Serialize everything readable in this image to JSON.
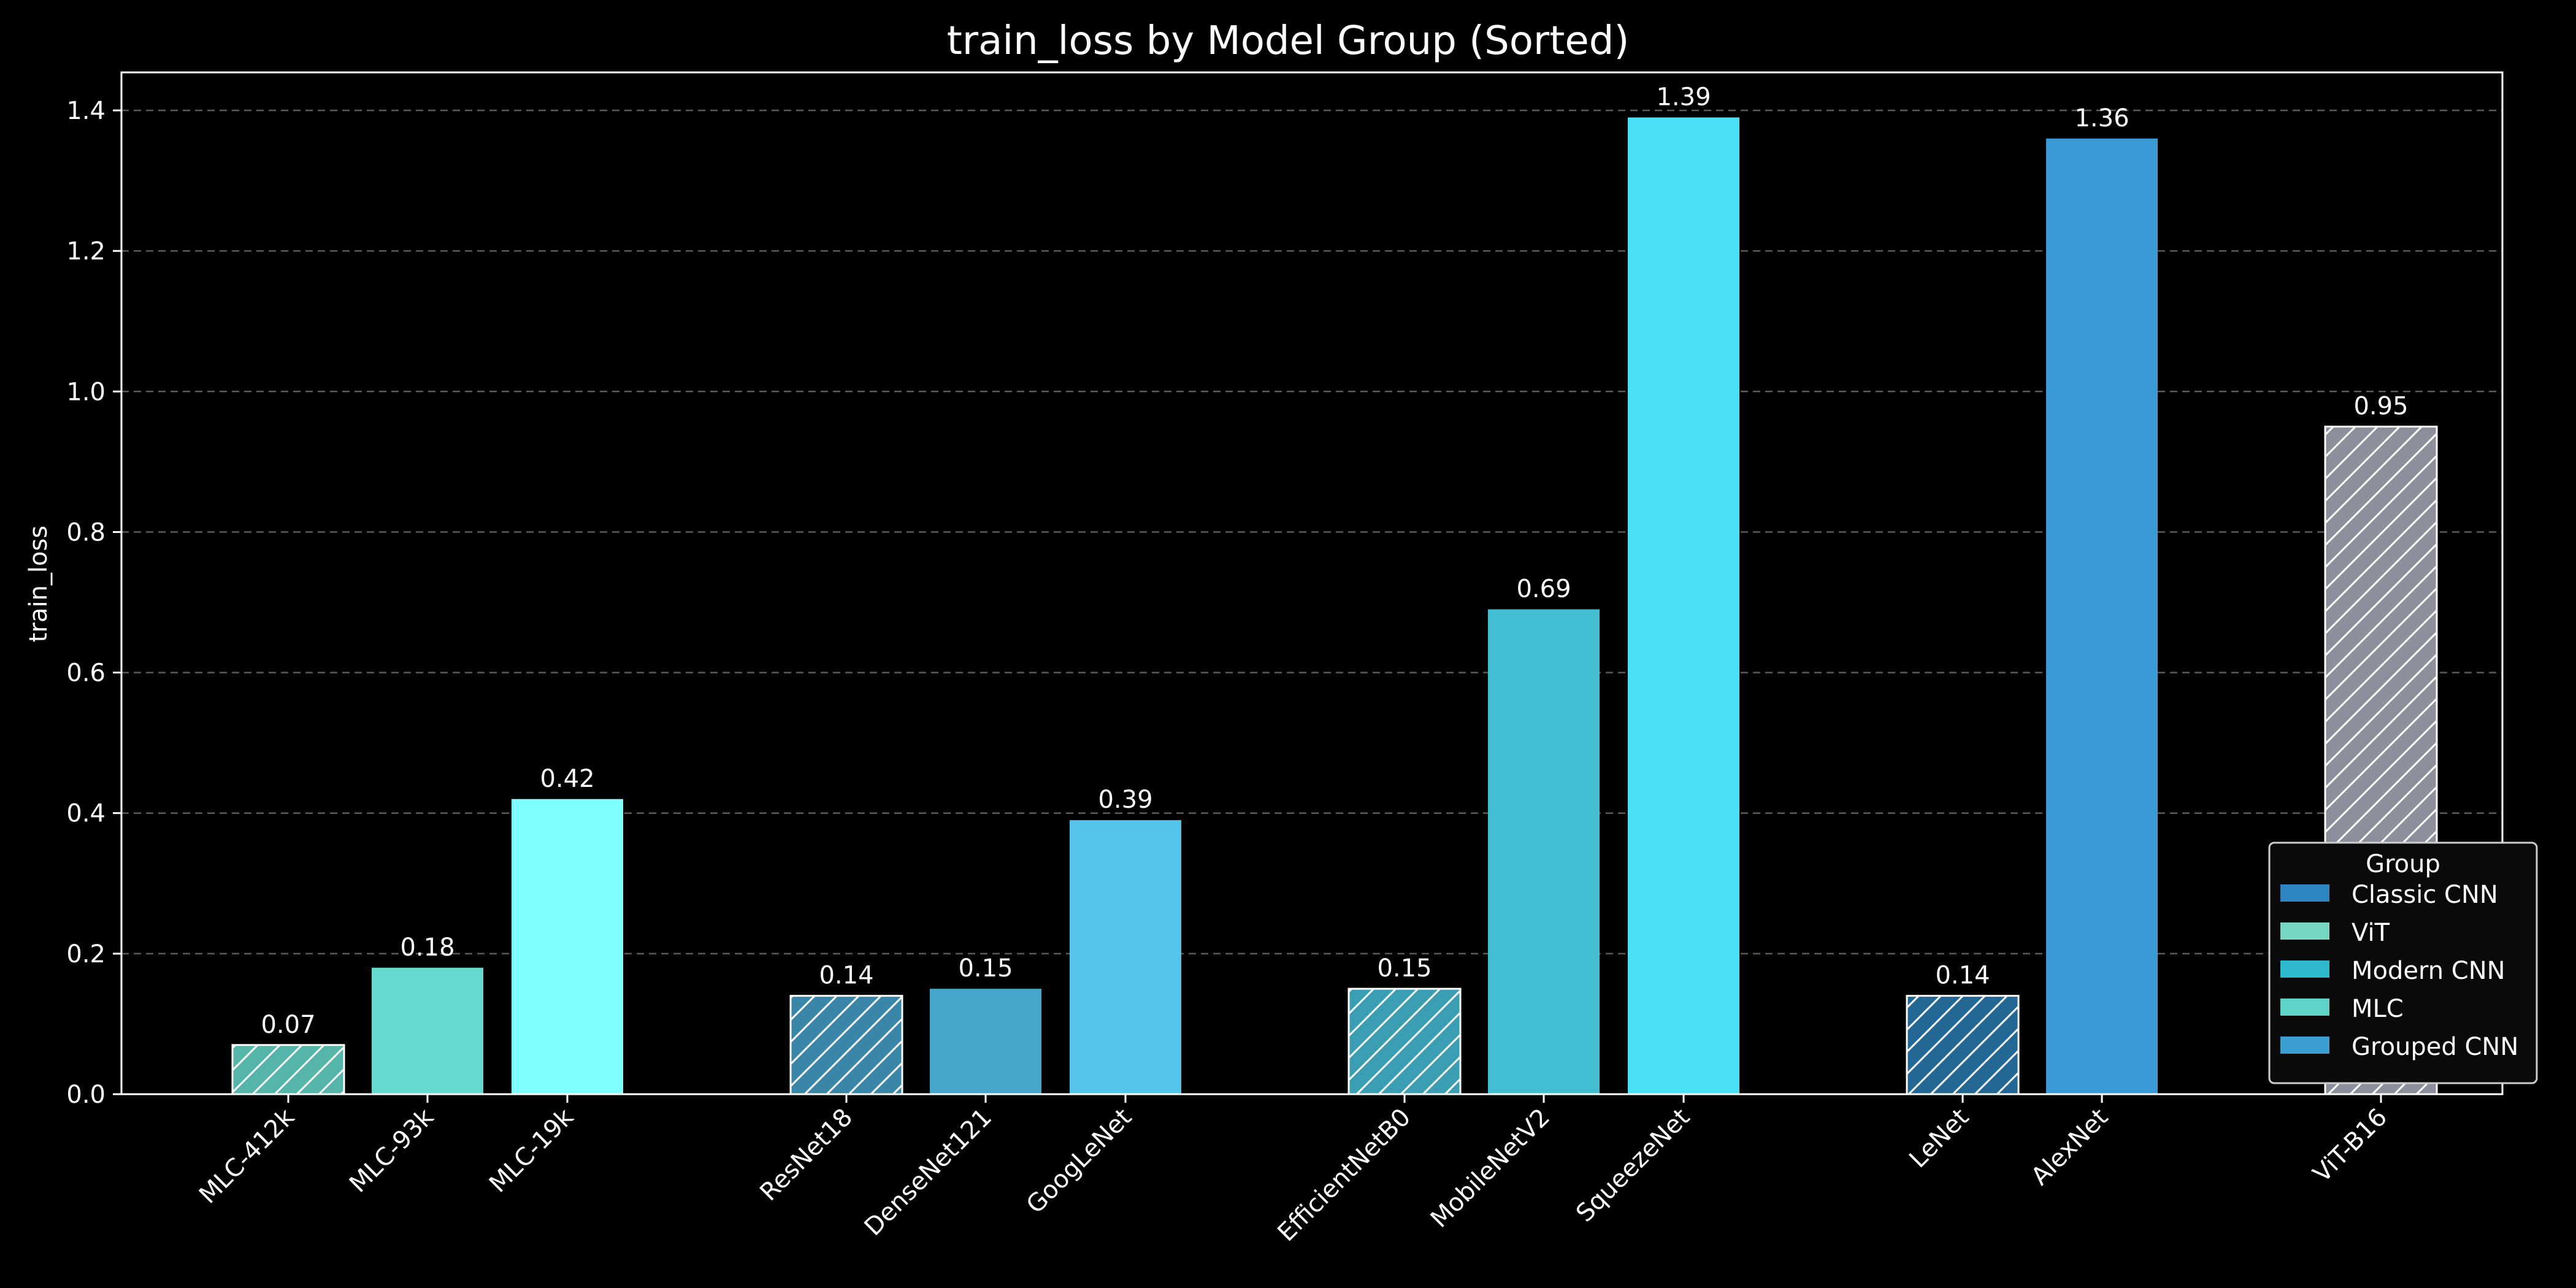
{
  "chart_data": {
    "type": "bar",
    "title": "train_loss by Model Group (Sorted)",
    "xlabel": "",
    "ylabel": "train_loss",
    "ylim": [
      0,
      1.45
    ],
    "yticks": [
      "0.0",
      "0.2",
      "0.4",
      "0.6",
      "0.8",
      "1.0",
      "1.2",
      "1.4"
    ],
    "grid": "horizontal dashed",
    "legend_title": "Group",
    "legend_placement": "lower-right",
    "legend": [
      {
        "label": "Classic CNN",
        "color": "#2e86c1"
      },
      {
        "label": "ViT",
        "color": "#76d7c4"
      },
      {
        "label": "Modern CNN",
        "color": "#2eb8cc"
      },
      {
        "label": "MLC",
        "color": "#5fd3c8"
      },
      {
        "label": "Grouped CNN",
        "color": "#3a9fd0"
      }
    ],
    "bars": [
      {
        "category": "MLC-412k",
        "value": 0.07,
        "label": "0.07",
        "color": "#55b5a9",
        "hatch": true
      },
      {
        "category": "MLC-93k",
        "value": 0.18,
        "label": "0.18",
        "color": "#66d9cf",
        "hatch": false
      },
      {
        "category": "MLC-19k",
        "value": 0.42,
        "label": "0.42",
        "color": "#7fffff",
        "hatch": false
      },
      {
        "category": "ResNet18",
        "value": 0.14,
        "label": "0.14",
        "color": "#3a86a8",
        "hatch": true
      },
      {
        "category": "DenseNet121",
        "value": 0.15,
        "label": "0.15",
        "color": "#45a5cb",
        "hatch": false
      },
      {
        "category": "GoogLeNet",
        "value": 0.39,
        "label": "0.39",
        "color": "#55c4ed",
        "hatch": false
      },
      {
        "category": "EfficientNetB0",
        "value": 0.15,
        "label": "0.15",
        "color": "#3b9eb3",
        "hatch": true
      },
      {
        "category": "MobileNetV2",
        "value": 0.69,
        "label": "0.69",
        "color": "#42bdd1",
        "hatch": false
      },
      {
        "category": "SqueezeNet",
        "value": 1.39,
        "label": "1.39",
        "color": "#4ae0f8",
        "hatch": false
      },
      {
        "category": "LeNet",
        "value": 0.14,
        "label": "0.14",
        "color": "#236895",
        "hatch": true
      },
      {
        "category": "AlexNet",
        "value": 1.36,
        "label": "1.36",
        "color": "#3a9ad6",
        "hatch": false
      },
      {
        "category": "ViT-B16",
        "value": 0.95,
        "label": "0.95",
        "color": "#8c8f9b",
        "hatch": true
      }
    ]
  }
}
